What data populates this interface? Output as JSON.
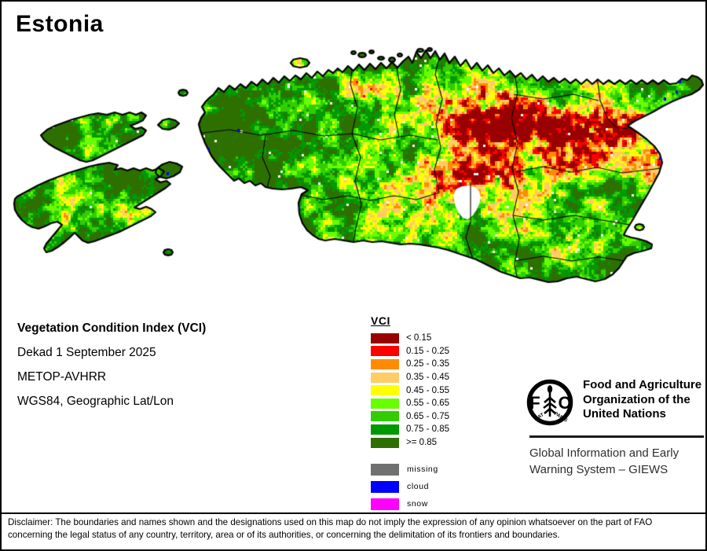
{
  "title": "Estonia",
  "info": {
    "product": "Vegetation Condition Index (VCI)",
    "dekad": "Dekad 1 September 2025",
    "sensor": "METOP-AVHRR",
    "projection": "WGS84, Geographic Lat/Lon"
  },
  "legend": {
    "title": "VCI",
    "classes": [
      {
        "label": "< 0.15",
        "color": "#990000"
      },
      {
        "label": "0.15 - 0.25",
        "color": "#ff0000"
      },
      {
        "label": "0.25 - 0.35",
        "color": "#ff8c00"
      },
      {
        "label": "0.35 - 0.45",
        "color": "#ffcc66"
      },
      {
        "label": "0.45 - 0.55",
        "color": "#ffff00"
      },
      {
        "label": "0.55 - 0.65",
        "color": "#66ff00"
      },
      {
        "label": "0.65 - 0.75",
        "color": "#33cc00"
      },
      {
        "label": "0.75 - 0.85",
        "color": "#009900"
      },
      {
        "label": ">= 0.85",
        "color": "#2e7000"
      }
    ],
    "extra": [
      {
        "label": "missing",
        "color": "#707070"
      },
      {
        "label": "cloud",
        "color": "#0000ff"
      },
      {
        "label": "snow",
        "color": "#ff00ff"
      }
    ]
  },
  "map": {
    "region": "Estonia",
    "outline_color": "#000000",
    "admin_boundary_color": "#000000",
    "water_color": "#ffffff"
  },
  "fao": {
    "org_lines": [
      "Food and Agriculture",
      "Organization of the",
      "United Nations"
    ],
    "giews_lines": [
      "Global Information and Early",
      "Warning System – GIEWS"
    ],
    "logo": {
      "letter_left": "F",
      "letter_right": "O",
      "motto_left": "FIAT",
      "motto_right": "PANIS"
    }
  },
  "disclaimer": {
    "line1": "Disclaimer: The boundaries and names shown and the designations used on this map do not imply the expression of any opinion whatsoever on the part of FAO",
    "line2": "concerning the legal status of any country, territory, area or of its authorities, or concerning the delimitation of its frontiers and boundaries."
  }
}
